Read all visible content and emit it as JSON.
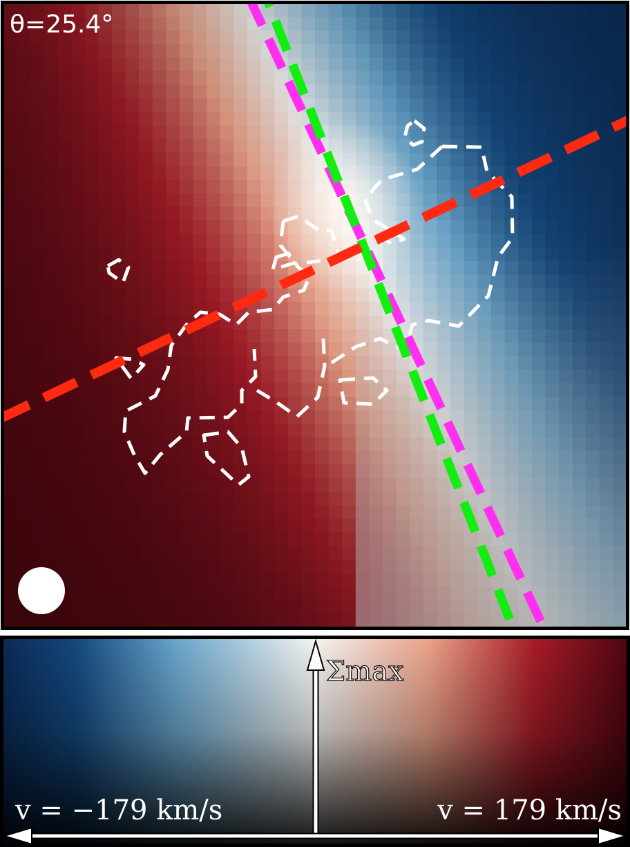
{
  "chart_data": {
    "type": "heatmap",
    "title": "",
    "description_kind": "velocity field map",
    "angle_label": "θ=25.4°",
    "angle_deg": 25.4,
    "colormap": {
      "negative_color": "#0b2d5a",
      "mid_color": "#f4f4f2",
      "positive_color": "#5a0a14",
      "min_label": "v = −179 km/s",
      "max_label": "v = 179 km/s",
      "vmin": -179,
      "vmax": 179,
      "unit": "km/s",
      "vertical_axis_label": "Σmax"
    },
    "lines": [
      {
        "name": "major-axis",
        "color": "#ff2a10",
        "angle_deg": 25.4
      },
      {
        "name": "minor-axis-a",
        "color": "#ff2ef0"
      },
      {
        "name": "minor-axis-b",
        "color": "#12ee10"
      }
    ],
    "legend": "none",
    "grid": false
  },
  "colors": {
    "contour": "#ffffff",
    "frame": "#000000",
    "beam": "#ffffff"
  },
  "icons": {
    "beam": "beam-circle-icon",
    "arrow_up": "arrow-up-icon",
    "arrow_left": "arrow-left-icon",
    "arrow_right": "arrow-right-icon"
  }
}
